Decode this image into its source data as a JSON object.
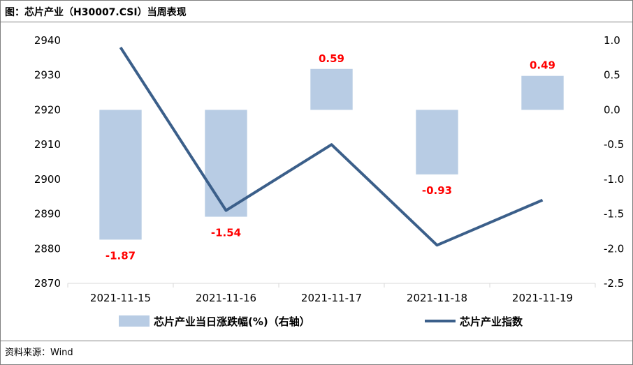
{
  "title": "图：芯片产业（H30007.CSI）当周表现",
  "source": "资料来源：Wind",
  "chart_data": {
    "type": "bar+line",
    "categories": [
      "2021-11-15",
      "2021-11-16",
      "2021-11-17",
      "2021-11-18",
      "2021-11-19"
    ],
    "series": [
      {
        "name": "芯片产业当日涨跌幅(%)（右轴）",
        "type": "bar",
        "axis": "right",
        "color": "#b8cce4",
        "values": [
          -1.87,
          -1.54,
          0.59,
          -0.93,
          0.49
        ],
        "labels": [
          "-1.87",
          "-1.54",
          "0.59",
          "-0.93",
          "0.49"
        ]
      },
      {
        "name": "芯片产业指数",
        "type": "line",
        "axis": "left",
        "color": "#3b5f8a",
        "values": [
          2938,
          2891,
          2910,
          2881,
          2894
        ]
      }
    ],
    "left_axis": {
      "min": 2870,
      "max": 2940,
      "ticks": [
        "2940",
        "2930",
        "2920",
        "2910",
        "2900",
        "2890",
        "2880",
        "2870"
      ]
    },
    "right_axis": {
      "min": -2.5,
      "max": 1.0,
      "ticks": [
        "1.0",
        "0.5",
        "0.0",
        "-0.5",
        "-1.0",
        "-1.5",
        "-2.0",
        "-2.5"
      ]
    },
    "label_color": "#ff0000",
    "grid": false,
    "legend_position": "bottom"
  }
}
